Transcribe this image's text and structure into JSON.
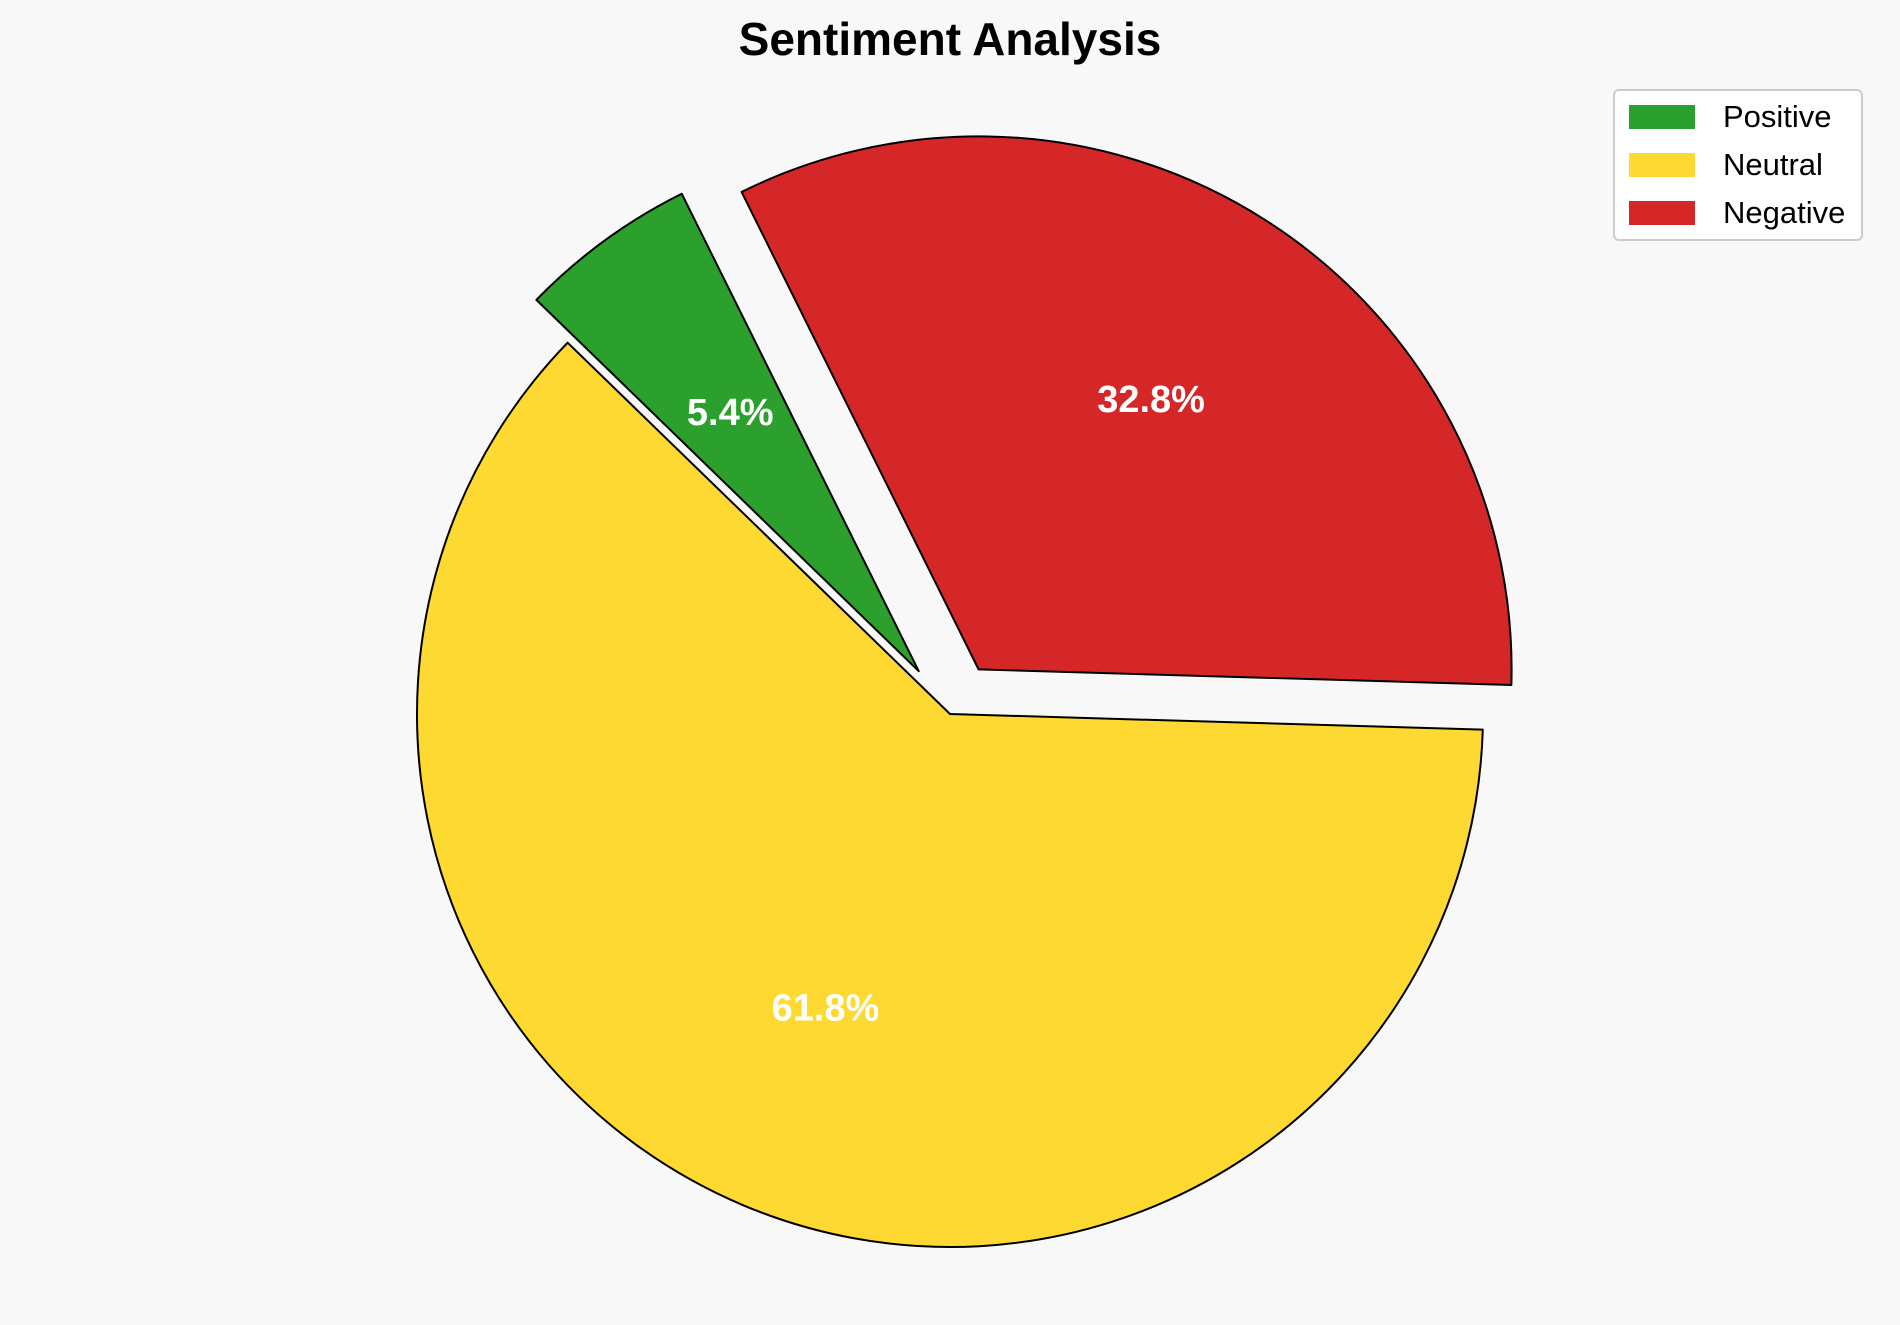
{
  "chart_data": {
    "type": "pie",
    "title": "Sentiment Analysis",
    "slices": [
      {
        "name": "Positive",
        "value": 5.4,
        "label": "5.4%",
        "color": "#2ca02c",
        "exploded": true
      },
      {
        "name": "Neutral",
        "value": 61.8,
        "label": "61.8%",
        "color": "#fed931",
        "exploded": false
      },
      {
        "name": "Negative",
        "value": 32.8,
        "label": "32.8%",
        "color": "#d62728",
        "exploded": true
      }
    ],
    "legend": {
      "placement": "top-right",
      "entries": [
        "Positive",
        "Neutral",
        "Negative"
      ]
    }
  }
}
